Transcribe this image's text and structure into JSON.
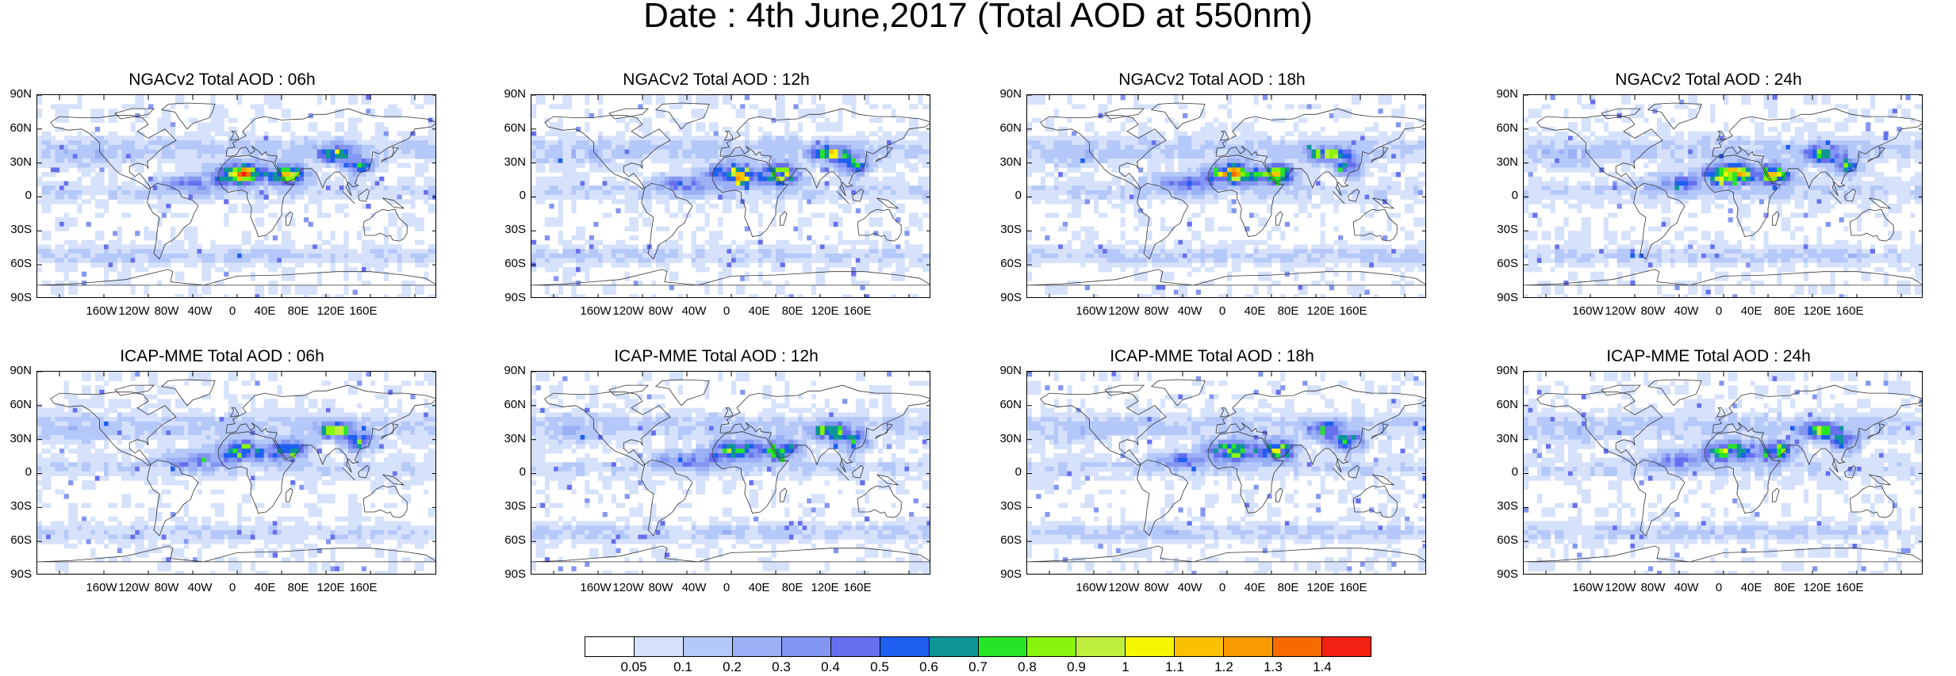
{
  "title": "Date : 4th June,2017 (Total AOD at 550nm)",
  "panels": [
    {
      "title": "NGACv2 Total AOD : 06h"
    },
    {
      "title": "NGACv2 Total AOD : 12h"
    },
    {
      "title": "NGACv2 Total AOD : 18h"
    },
    {
      "title": "NGACv2 Total AOD : 24h"
    },
    {
      "title": "ICAP-MME Total AOD : 06h"
    },
    {
      "title": "ICAP-MME Total AOD : 12h"
    },
    {
      "title": "ICAP-MME Total AOD : 18h"
    },
    {
      "title": "ICAP-MME Total AOD : 24h"
    }
  ],
  "lat_ticks": [
    "90N",
    "60N",
    "30N",
    "0",
    "30S",
    "60S",
    "90S"
  ],
  "lon_ticks": [
    "160W",
    "120W",
    "80W",
    "40W",
    "0",
    "40E",
    "80E",
    "120E",
    "160E"
  ],
  "colorbar": {
    "labels": [
      "0.05",
      "0.1",
      "0.2",
      "0.3",
      "0.4",
      "0.5",
      "0.6",
      "0.7",
      "0.8",
      "0.9",
      "1",
      "1.1",
      "1.2",
      "1.3",
      "1.4"
    ],
    "colors": [
      "#ffffff",
      "#d6e1fb",
      "#b4c8f9",
      "#9bb0f5",
      "#8396f2",
      "#6670ef",
      "#1e5ff0",
      "#0e9596",
      "#26e526",
      "#88f50c",
      "#bfef3c",
      "#f6f600",
      "#f9c100",
      "#f89a00",
      "#f76a00",
      "#f22111"
    ]
  }
}
